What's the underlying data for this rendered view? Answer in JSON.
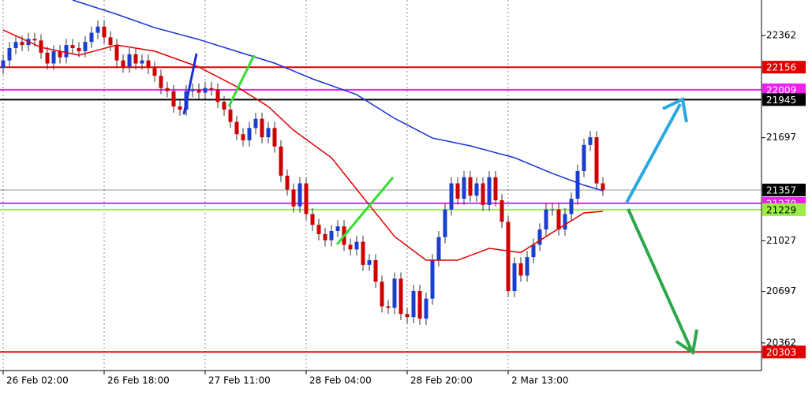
{
  "chart_data": {
    "type": "candlestick",
    "categories": [
      "26 Feb 02:00",
      null,
      null,
      null,
      null,
      null,
      null,
      null,
      null,
      null,
      null,
      null,
      null,
      null,
      null,
      null,
      "26 Feb 18:00",
      null,
      null,
      null,
      null,
      null,
      null,
      null,
      null,
      null,
      null,
      null,
      null,
      null,
      null,
      null,
      "27 Feb 11:00",
      null,
      null,
      null,
      null,
      null,
      null,
      null,
      null,
      null,
      null,
      null,
      null,
      null,
      null,
      null,
      "28 Feb 04:00",
      null,
      null,
      null,
      null,
      null,
      null,
      null,
      null,
      null,
      null,
      null,
      null,
      null,
      null,
      null,
      "28 Feb 20:00",
      null,
      null,
      null,
      null,
      null,
      null,
      null,
      null,
      null,
      null,
      null,
      null,
      null,
      null,
      null,
      "2 Mar 13:00",
      null,
      null,
      null,
      null,
      null,
      null,
      null,
      null,
      null,
      null,
      null,
      null,
      null,
      null,
      null
    ],
    "open": [
      22150,
      22200,
      22280,
      22320,
      22300,
      22340,
      22330,
      22250,
      22180,
      22260,
      22220,
      22300,
      22280,
      22260,
      22320,
      22380,
      22420,
      22350,
      22300,
      22200,
      22160,
      22240,
      22180,
      22200,
      22150,
      22100,
      22020,
      22000,
      21900,
      21880,
      22000,
      22010,
      21990,
      22020,
      22010,
      21930,
      21880,
      21800,
      21720,
      21680,
      21760,
      21820,
      21700,
      21760,
      21640,
      21450,
      21360,
      21250,
      21400,
      21200,
      21130,
      21070,
      21030,
      21090,
      21120,
      21000,
      20970,
      21020,
      20870,
      20900,
      20760,
      20600,
      20590,
      20780,
      20550,
      20530,
      20700,
      20520,
      20650,
      20900,
      21050,
      21230,
      21400,
      21300,
      21440,
      21320,
      21400,
      21260,
      21440,
      21290,
      21150,
      20700,
      20880,
      20800,
      20920,
      21000,
      21100,
      21230,
      21230,
      21100,
      21200,
      21300,
      21480,
      21650,
      21700,
      21400
    ],
    "high": [
      22240,
      22320,
      22360,
      22360,
      22380,
      22380,
      22370,
      22290,
      22300,
      22300,
      22340,
      22340,
      22320,
      22360,
      22420,
      22460,
      22460,
      22390,
      22340,
      22240,
      22280,
      22280,
      22240,
      22240,
      22190,
      22140,
      22060,
      22040,
      21940,
      22040,
      22050,
      22050,
      22060,
      22060,
      22050,
      21970,
      21920,
      21840,
      21760,
      21800,
      21860,
      21860,
      21800,
      21800,
      21680,
      21490,
      21400,
      21440,
      21440,
      21240,
      21170,
      21110,
      21130,
      21160,
      21160,
      21040,
      21060,
      21060,
      20940,
      20940,
      20800,
      20640,
      20820,
      20820,
      20590,
      20740,
      20740,
      20690,
      20940,
      21090,
      21270,
      21440,
      21440,
      21480,
      21480,
      21440,
      21440,
      21480,
      21480,
      21330,
      21190,
      20920,
      20920,
      20960,
      21040,
      21140,
      21270,
      21270,
      21270,
      21240,
      21340,
      21520,
      21690,
      21740,
      21740,
      21440
    ],
    "low": [
      22110,
      22160,
      22240,
      22260,
      22260,
      22290,
      22210,
      22140,
      22140,
      22180,
      22180,
      22240,
      22220,
      22220,
      22280,
      22340,
      22310,
      22260,
      22160,
      22120,
      22120,
      22140,
      22140,
      22110,
      22060,
      21980,
      21960,
      21860,
      21840,
      21840,
      21960,
      21950,
      21950,
      21970,
      21890,
      21840,
      21760,
      21680,
      21640,
      21640,
      21720,
      21660,
      21660,
      21600,
      21410,
      21320,
      21210,
      21210,
      21160,
      21090,
      21030,
      20990,
      20990,
      21050,
      20960,
      20930,
      20930,
      20830,
      20830,
      20720,
      20560,
      20550,
      20550,
      20510,
      20490,
      20490,
      20480,
      20480,
      20610,
      20860,
      21010,
      21190,
      21260,
      21260,
      21280,
      21280,
      21220,
      21220,
      21250,
      21110,
      20660,
      20660,
      20760,
      20760,
      20880,
      20960,
      21060,
      21190,
      21060,
      21060,
      21160,
      21260,
      21440,
      21610,
      21360,
      21317
    ],
    "close": [
      22200,
      22280,
      22320,
      22300,
      22340,
      22330,
      22250,
      22180,
      22260,
      22220,
      22300,
      22280,
      22260,
      22320,
      22380,
      22420,
      22350,
      22300,
      22200,
      22160,
      22240,
      22180,
      22200,
      22150,
      22100,
      22020,
      22000,
      21900,
      21880,
      22000,
      22010,
      21990,
      22020,
      22010,
      21930,
      21880,
      21800,
      21720,
      21680,
      21760,
      21820,
      21700,
      21760,
      21640,
      21450,
      21360,
      21250,
      21400,
      21200,
      21130,
      21070,
      21030,
      21090,
      21120,
      21000,
      20970,
      21020,
      20870,
      20900,
      20760,
      20600,
      20590,
      20780,
      20550,
      20530,
      20700,
      20520,
      20650,
      20900,
      21050,
      21230,
      21400,
      21300,
      21440,
      21320,
      21400,
      21260,
      21440,
      21290,
      21150,
      20700,
      20880,
      20800,
      20920,
      21000,
      21100,
      21230,
      21230,
      21100,
      21200,
      21300,
      21480,
      21650,
      21700,
      21400,
      21357
    ],
    "up_color": "#1a3fd0",
    "down_color": "#d00000",
    "series": [
      {
        "color": "#e00000",
        "x": [
          0,
          6,
          12,
          18,
          24,
          31,
          37,
          42,
          46,
          52,
          57,
          62,
          67,
          72,
          77,
          82,
          87,
          92,
          95
        ],
        "values": [
          22398,
          22285,
          22234,
          22300,
          22260,
          22157,
          22029,
          21900,
          21746,
          21567,
          21310,
          21054,
          20900,
          20900,
          20977,
          20950,
          21080,
          21208,
          21218
        ]
      },
      {
        "color": "#1a2fd8",
        "x": [
          11,
          18,
          24,
          31,
          37,
          43,
          49,
          56,
          62,
          68,
          74,
          81,
          87,
          92,
          95
        ],
        "values": [
          22593,
          22500,
          22413,
          22336,
          22259,
          22182,
          22080,
          21977,
          21823,
          21695,
          21644,
          21567,
          21465,
          21388,
          21352
        ]
      }
    ],
    "levels": [
      {
        "value": 22156,
        "color": "#e00000"
      },
      {
        "value": 22009,
        "color": "#ee22ee"
      },
      {
        "value": 21945,
        "color": "#000000"
      },
      {
        "value": 21357,
        "color": "#000000"
      },
      {
        "value": 21270,
        "color": "#ee22ee"
      },
      {
        "value": 21229,
        "color": "#99ee44"
      },
      {
        "value": 20303,
        "color": "#e00000"
      }
    ],
    "ylim": [
      20182,
      22593
    ],
    "yticks": [
      20362,
      20697,
      21027,
      21697,
      22362
    ],
    "grid": true
  }
}
